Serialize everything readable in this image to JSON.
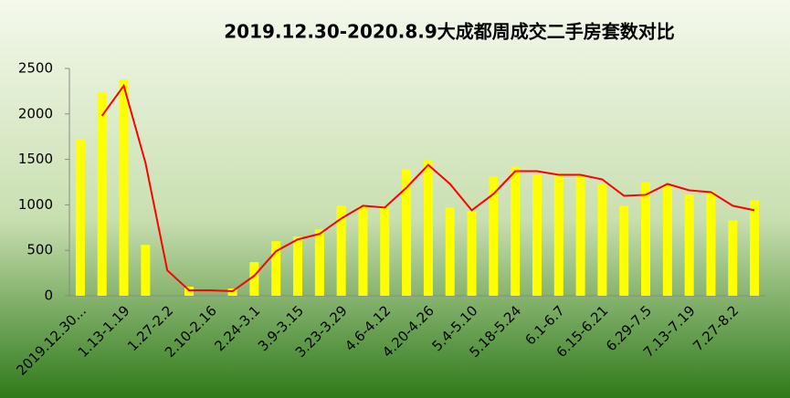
{
  "chart_data": {
    "type": "bar",
    "title": "2019.12.30-2020.8.9大成都周成交二手房套数对比",
    "categories": [
      "2019.12.30...",
      null,
      "1.13-1.19",
      null,
      "1.27-2.2",
      null,
      "2.10-2.16",
      null,
      "2.24-3.1",
      null,
      "3.9-3.15",
      null,
      "3.23-3.29",
      null,
      "4.6-4.12",
      null,
      "4.20-4.26",
      null,
      "5.4-5.10",
      null,
      "5.18-5.24",
      null,
      "6.1-6.7",
      null,
      "6.15-6.21",
      null,
      "6.29-7.5",
      null,
      "7.13-7.19",
      null,
      "7.27-8.2",
      null
    ],
    "series": [
      {
        "type": "bar",
        "color": "#ffff00",
        "values": [
          1720,
          2240,
          2380,
          560,
          0,
          100,
          0,
          80,
          370,
          600,
          650,
          730,
          990,
          990,
          980,
          1390,
          1490,
          970,
          930,
          1310,
          1420,
          1330,
          1320,
          1320,
          1230,
          990,
          1250,
          1210,
          1110,
          1150,
          830,
          1050
        ]
      },
      {
        "type": "line",
        "color": "#ff0000",
        "values": [
          null,
          1980,
          2310,
          1460,
          280,
          60,
          60,
          50,
          220,
          490,
          620,
          680,
          850,
          990,
          970,
          1190,
          1440,
          1230,
          940,
          1120,
          1370,
          1370,
          1330,
          1330,
          1280,
          1100,
          1110,
          1230,
          1160,
          1140,
          990,
          940
        ]
      }
    ],
    "ylim": [
      0,
      2500
    ],
    "yticks": [
      0,
      500,
      1000,
      1500,
      2000,
      2500
    ],
    "grid": false
  }
}
